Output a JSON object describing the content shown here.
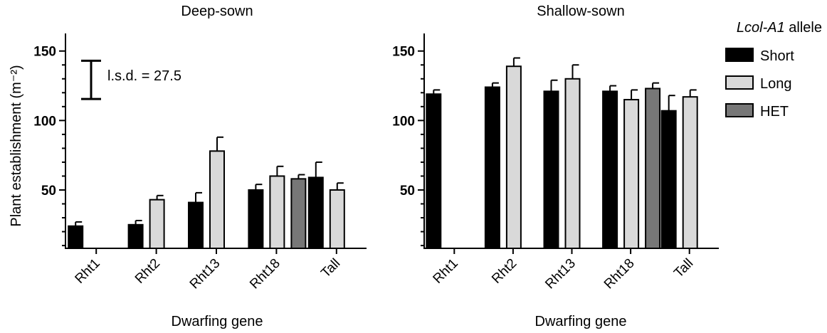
{
  "chart_data": [
    {
      "type": "bar",
      "title": "Deep-sown",
      "xlabel": "Dwarfing gene",
      "ylabel": "Plant establishment (m⁻²)",
      "ylim": [
        8,
        156
      ],
      "yticks": [
        50,
        100,
        150
      ],
      "categories": [
        "Rht1",
        "Rht2",
        "Rht13",
        "Rht18",
        "Tall"
      ],
      "series": [
        {
          "name": "Short",
          "values": [
            24,
            25,
            41,
            50,
            59
          ],
          "error": [
            3,
            3,
            7,
            4,
            11
          ]
        },
        {
          "name": "Long",
          "values": [
            null,
            43,
            78,
            60,
            50
          ],
          "error": [
            null,
            3,
            10,
            7,
            5
          ]
        },
        {
          "name": "HET",
          "values": [
            null,
            null,
            null,
            58,
            null
          ],
          "error": [
            null,
            null,
            null,
            3,
            null
          ]
        }
      ],
      "annotation": {
        "text": "l.s.d. = 27.5",
        "value": 27.5
      },
      "grid": false
    },
    {
      "type": "bar",
      "title": "Shallow-sown",
      "xlabel": "Dwarfing gene",
      "ylabel": "",
      "ylim": [
        8,
        156
      ],
      "yticks": [
        50,
        100,
        150
      ],
      "categories": [
        "Rht1",
        "Rht2",
        "Rht13",
        "Rht18",
        "Tall"
      ],
      "series": [
        {
          "name": "Short",
          "values": [
            119,
            124,
            121,
            121,
            107
          ],
          "error": [
            3,
            3,
            8,
            4,
            11
          ]
        },
        {
          "name": "Long",
          "values": [
            null,
            139,
            130,
            115,
            117
          ],
          "error": [
            null,
            6,
            10,
            7,
            5
          ]
        },
        {
          "name": "HET",
          "values": [
            null,
            null,
            null,
            123,
            null
          ],
          "error": [
            null,
            null,
            null,
            4,
            null
          ]
        }
      ],
      "grid": false
    }
  ],
  "legend": {
    "title_italic": "Lcol-A1",
    "title_rest": " allele",
    "placement": "right",
    "items": [
      {
        "label": "Short",
        "color": "#000000"
      },
      {
        "label": "Long",
        "color": "#d9d9d9"
      },
      {
        "label": "HET",
        "color": "#777777"
      }
    ]
  },
  "colors": {
    "Short": "#000000",
    "Long": "#d9d9d9",
    "HET": "#777777"
  }
}
